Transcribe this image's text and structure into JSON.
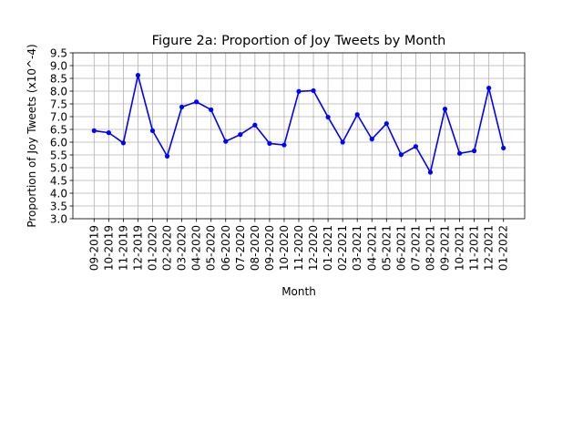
{
  "chart_data": {
    "type": "line",
    "title": "Figure 2a: Proportion of Joy Tweets by Month",
    "xlabel": "Month",
    "ylabel": "Proportion of Joy Tweets (x10^-4)",
    "ylim": [
      3.0,
      9.5
    ],
    "yticks": [
      "3.0",
      "3.5",
      "4.0",
      "4.5",
      "5.0",
      "5.5",
      "6.0",
      "6.5",
      "7.0",
      "7.5",
      "8.0",
      "8.5",
      "9.0",
      "9.5"
    ],
    "grid": true,
    "line_color": "#0000ff",
    "categories": [
      "09-2019",
      "10-2019",
      "11-2019",
      "12-2019",
      "01-2020",
      "02-2020",
      "03-2020",
      "04-2020",
      "05-2020",
      "06-2020",
      "07-2020",
      "08-2020",
      "09-2020",
      "10-2020",
      "11-2020",
      "12-2020",
      "01-2021",
      "02-2021",
      "03-2021",
      "04-2021",
      "05-2021",
      "06-2021",
      "07-2021",
      "08-2021",
      "09-2021",
      "10-2021",
      "11-2021",
      "12-2021",
      "01-2022"
    ],
    "values": [
      6.45,
      6.37,
      5.97,
      8.62,
      6.45,
      5.45,
      7.38,
      7.58,
      7.27,
      6.03,
      6.3,
      6.67,
      5.95,
      5.89,
      7.99,
      8.02,
      6.98,
      6.0,
      7.08,
      6.12,
      6.73,
      5.51,
      5.83,
      4.82,
      7.3,
      5.56,
      5.66,
      8.12,
      5.77
    ]
  }
}
